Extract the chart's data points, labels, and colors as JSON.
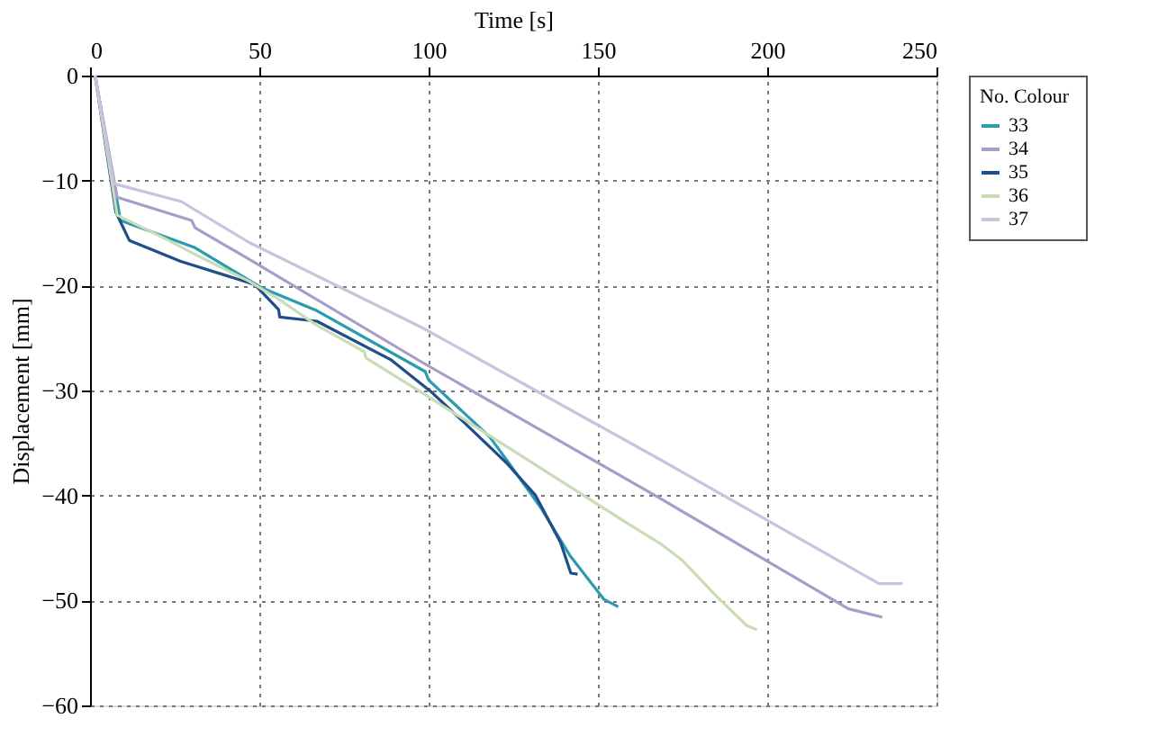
{
  "chart_data": {
    "type": "line",
    "xlabel": "Time [s]",
    "ylabel": "Displacement [mm]",
    "legend_title": "No.  Colour",
    "xlim": [
      0,
      250
    ],
    "xticks": [
      0,
      50,
      100,
      150,
      200,
      250
    ],
    "ylim": [
      -60,
      0
    ],
    "yticks": [
      0,
      -10,
      -20,
      -30,
      -40,
      -50,
      -60
    ],
    "grid": true,
    "legend": "right",
    "line_style": "solid",
    "marker": "none",
    "series": [
      {
        "name": "33",
        "color": "#2a9bb0",
        "x": [
          1.5,
          9,
          31,
          50.6,
          67,
          99,
          100,
          118,
          123,
          133,
          141.7,
          151.8,
          156
        ],
        "values": [
          0,
          -13.8,
          -16.4,
          -20.2,
          -22.4,
          -28.2,
          -29,
          -34.4,
          -36.6,
          -41.1,
          -45.7,
          -49.9,
          -50.6
        ]
      },
      {
        "name": "34",
        "color": "#a89cc8",
        "x": [
          1.5,
          8,
          30,
          31,
          47,
          98,
          168.5,
          224,
          234
        ],
        "values": [
          0,
          -11.6,
          -13.8,
          -14.5,
          -17.5,
          -27.3,
          -40.3,
          -50.8,
          -51.6
        ]
      },
      {
        "name": "35",
        "color": "#1f4e8a",
        "x": [
          1.5,
          7.6,
          11.6,
          26.8,
          48.6,
          55.7,
          56,
          67,
          89,
          101,
          111,
          123,
          131.6,
          139,
          142,
          144
        ],
        "values": [
          0,
          -13,
          -15.7,
          -17.7,
          -19.9,
          -22.3,
          -23,
          -23.4,
          -27.1,
          -30.2,
          -33.2,
          -36.9,
          -40,
          -44.5,
          -47.4,
          -47.5
        ]
      },
      {
        "name": "36",
        "color": "#c8dcb8",
        "x": [
          1.5,
          8,
          22,
          32,
          47,
          55.7,
          67,
          81,
          81.5,
          98,
          158,
          168.5,
          175,
          185,
          194,
          197
        ],
        "values": [
          0,
          -13.3,
          -15.5,
          -17.2,
          -19.6,
          -21.3,
          -23.8,
          -26.3,
          -26.9,
          -30.2,
          -42.5,
          -44.6,
          -46.2,
          -49.6,
          -52.4,
          -52.8
        ]
      },
      {
        "name": "37",
        "color": "#c9c3dd",
        "x": [
          1.5,
          7,
          27,
          30,
          47,
          98,
          168.5,
          233,
          240
        ],
        "values": [
          0,
          -10.3,
          -12,
          -12.6,
          -15.9,
          -24,
          -36.6,
          -48.4,
          -48.4
        ]
      }
    ]
  }
}
